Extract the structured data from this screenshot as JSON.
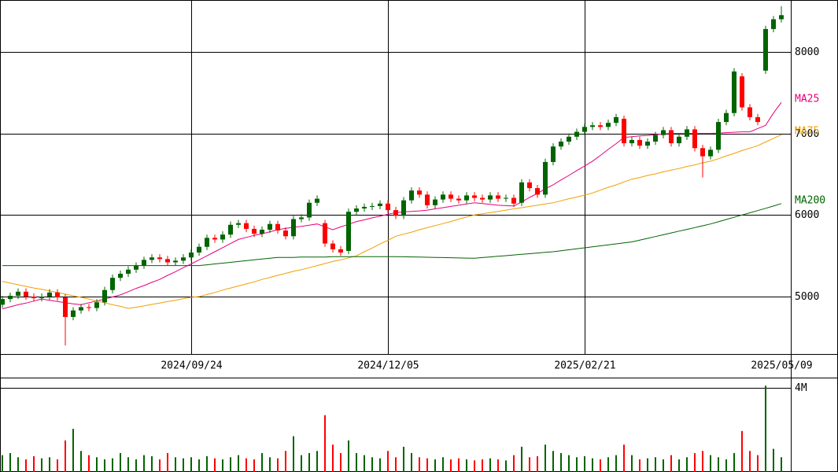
{
  "chart_data": {
    "type": "candlestick",
    "categories": [
      null,
      null,
      null,
      null,
      null,
      null,
      null,
      null,
      null,
      null,
      null,
      null,
      null,
      null,
      null,
      null,
      null,
      null,
      null,
      null,
      null,
      null,
      null,
      null,
      "2024/09/24",
      null,
      null,
      null,
      null,
      null,
      null,
      null,
      null,
      null,
      null,
      null,
      null,
      null,
      null,
      null,
      null,
      null,
      null,
      null,
      null,
      null,
      null,
      null,
      null,
      "2024/12/05",
      null,
      null,
      null,
      null,
      null,
      null,
      null,
      null,
      null,
      null,
      null,
      null,
      null,
      null,
      null,
      null,
      null,
      null,
      null,
      null,
      null,
      null,
      null,
      null,
      "2025/02/21",
      null,
      null,
      null,
      null,
      null,
      null,
      null,
      null,
      null,
      null,
      null,
      null,
      null,
      null,
      null,
      null,
      null,
      null,
      null,
      null,
      null,
      null,
      null,
      null,
      "2025/05/09"
    ],
    "open": [
      4900,
      4970,
      5010,
      5060,
      5000,
      4980,
      5000,
      5050,
      4990,
      4750,
      4830,
      4870,
      4860,
      4930,
      5080,
      5230,
      5280,
      5330,
      5380,
      5450,
      5480,
      5460,
      5420,
      5440,
      5480,
      5540,
      5610,
      5720,
      5700,
      5760,
      5880,
      5900,
      5830,
      5770,
      5820,
      5890,
      5810,
      5740,
      5950,
      5970,
      6150,
      5900,
      5650,
      5580,
      5560,
      6040,
      6080,
      6100,
      6110,
      6140,
      6060,
      5990,
      6180,
      6300,
      6250,
      6120,
      6190,
      6250,
      6200,
      6180,
      6240,
      6210,
      6190,
      6240,
      6200,
      6210,
      6150,
      6400,
      6330,
      6250,
      6650,
      6840,
      6900,
      6960,
      7020,
      7080,
      7100,
      7080,
      7130,
      7180,
      6880,
      6920,
      6850,
      6900,
      6980,
      7040,
      6880,
      6960,
      7050,
      6820,
      6720,
      6800,
      7140,
      7250,
      7700,
      7320,
      7200,
      7770,
      8280,
      8400
    ],
    "high": [
      5010,
      5050,
      5100,
      5100,
      5040,
      5040,
      5090,
      5090,
      5030,
      4870,
      4910,
      4910,
      4970,
      5120,
      5270,
      5320,
      5370,
      5420,
      5490,
      5520,
      5520,
      5500,
      5480,
      5520,
      5580,
      5650,
      5760,
      5760,
      5800,
      5920,
      5940,
      5940,
      5870,
      5860,
      5930,
      5930,
      5850,
      5990,
      6010,
      6190,
      6240,
      5940,
      5690,
      5620,
      6080,
      6120,
      6140,
      6150,
      6180,
      6180,
      6100,
      6220,
      6340,
      6340,
      6290,
      6230,
      6290,
      6290,
      6240,
      6280,
      6280,
      6250,
      6280,
      6280,
      6250,
      6250,
      6440,
      6440,
      6370,
      6690,
      6880,
      6940,
      7000,
      7060,
      7120,
      7140,
      7140,
      7170,
      7240,
      7220,
      6960,
      6960,
      6940,
      7020,
      7080,
      7080,
      7000,
      7090,
      7090,
      6860,
      6840,
      7180,
      7290,
      7800,
      7740,
      7360,
      7240,
      8320,
      8440,
      8560
    ],
    "low": [
      4860,
      4930,
      4970,
      4960,
      4940,
      4940,
      4960,
      4950,
      4400,
      4710,
      4790,
      4820,
      4820,
      4890,
      5040,
      5190,
      5240,
      5290,
      5340,
      5410,
      5420,
      5380,
      5380,
      5400,
      5440,
      5500,
      5570,
      5660,
      5660,
      5720,
      5840,
      5790,
      5730,
      5730,
      5780,
      5770,
      5700,
      5700,
      5910,
      5930,
      6110,
      5610,
      5540,
      5500,
      5520,
      6000,
      6040,
      6060,
      6070,
      6020,
      5950,
      5950,
      6140,
      6210,
      6080,
      6080,
      6150,
      6160,
      6140,
      6140,
      6170,
      6150,
      6150,
      6160,
      6160,
      6100,
      6110,
      6290,
      6210,
      6210,
      6610,
      6800,
      6860,
      6920,
      6980,
      7040,
      7040,
      7040,
      7090,
      6840,
      6840,
      6810,
      6810,
      6860,
      6940,
      6840,
      6840,
      6920,
      6780,
      6460,
      6680,
      6760,
      7100,
      7210,
      7280,
      7160,
      7100,
      7730,
      8240,
      8360
    ],
    "close": [
      4970,
      5010,
      5060,
      5000,
      4980,
      5000,
      5050,
      4990,
      4750,
      4830,
      4870,
      4860,
      4930,
      5080,
      5230,
      5280,
      5330,
      5380,
      5450,
      5480,
      5460,
      5420,
      5440,
      5480,
      5540,
      5610,
      5720,
      5700,
      5760,
      5880,
      5900,
      5830,
      5770,
      5820,
      5890,
      5810,
      5740,
      5950,
      5970,
      6150,
      6200,
      5650,
      5580,
      5540,
      6040,
      6080,
      6100,
      6110,
      6140,
      6060,
      5990,
      6180,
      6300,
      6250,
      6120,
      6190,
      6250,
      6200,
      6180,
      6240,
      6210,
      6190,
      6240,
      6200,
      6210,
      6140,
      6400,
      6330,
      6250,
      6650,
      6840,
      6900,
      6960,
      7020,
      7080,
      7100,
      7080,
      7130,
      7200,
      6880,
      6920,
      6850,
      6900,
      6980,
      7040,
      6880,
      6960,
      7050,
      6820,
      6720,
      6800,
      7140,
      7250,
      7760,
      7320,
      7200,
      7140,
      8280,
      8400,
      8450
    ],
    "volume": [
      800000,
      900000,
      700000,
      600000,
      750000,
      650000,
      700000,
      600000,
      1500000,
      2050000,
      1000000,
      800000,
      700000,
      600000,
      650000,
      900000,
      700000,
      600000,
      800000,
      750000,
      600000,
      900000,
      700000,
      650000,
      700000,
      600000,
      750000,
      650000,
      600000,
      700000,
      800000,
      650000,
      600000,
      900000,
      700000,
      650000,
      1000000,
      1700000,
      800000,
      900000,
      1000000,
      2700000,
      1300000,
      900000,
      1500000,
      900000,
      800000,
      700000,
      650000,
      1000000,
      700000,
      1200000,
      900000,
      700000,
      650000,
      600000,
      700000,
      600000,
      650000,
      600000,
      550000,
      600000,
      650000,
      600000,
      550000,
      800000,
      1200000,
      700000,
      750000,
      1300000,
      1000000,
      900000,
      800000,
      700000,
      750000,
      650000,
      600000,
      700000,
      800000,
      1300000,
      800000,
      600000,
      650000,
      700000,
      600000,
      800000,
      600000,
      700000,
      900000,
      1000000,
      800000,
      700000,
      600000,
      900000,
      1950000,
      1000000,
      800000,
      4100000,
      1100000,
      700000
    ],
    "up_color": "#006400",
    "down_color": "#ff0000",
    "series": [
      {
        "name": "MA25",
        "color": "#e6007e",
        "values": [
          4850,
          4875,
          4900,
          4920,
          4945,
          4970,
          4955,
          4940,
          4925,
          4910,
          4900,
          4925,
          4945,
          4970,
          4995,
          5020,
          5060,
          5100,
          5135,
          5175,
          5210,
          5260,
          5305,
          5355,
          5400,
          5450,
          5500,
          5550,
          5600,
          5650,
          5700,
          5725,
          5750,
          5770,
          5795,
          5820,
          5835,
          5850,
          5860,
          5875,
          5890,
          5855,
          5820,
          5855,
          5885,
          5920,
          5940,
          5965,
          5985,
          6010,
          6030,
          6040,
          6045,
          6050,
          6060,
          6075,
          6090,
          6105,
          6120,
          6135,
          6150,
          6140,
          6130,
          6120,
          6115,
          6110,
          6160,
          6215,
          6265,
          6320,
          6370,
          6430,
          6485,
          6545,
          6600,
          6660,
          6730,
          6805,
          6875,
          6950,
          6960,
          6970,
          6975,
          6985,
          6995,
          7000,
          7000,
          7000,
          7000,
          7000,
          7000,
          7005,
          7010,
          7015,
          7020,
          7020,
          7060,
          7100,
          7250,
          7380
        ]
      },
      {
        "name": "MA75",
        "color": "#f0a000",
        "values": [
          5185,
          5165,
          5145,
          5125,
          5105,
          5090,
          5070,
          5050,
          5030,
          5010,
          4990,
          4970,
          4945,
          4925,
          4900,
          4880,
          4855,
          4870,
          4885,
          4905,
          4920,
          4940,
          4955,
          4975,
          4990,
          5000,
          5025,
          5050,
          5080,
          5105,
          5130,
          5155,
          5180,
          5210,
          5235,
          5260,
          5285,
          5310,
          5330,
          5355,
          5380,
          5405,
          5430,
          5450,
          5475,
          5500,
          5550,
          5595,
          5645,
          5690,
          5740,
          5765,
          5790,
          5820,
          5845,
          5870,
          5895,
          5920,
          5950,
          5975,
          6000,
          6015,
          6030,
          6045,
          6060,
          6075,
          6090,
          6105,
          6120,
          6135,
          6150,
          6175,
          6200,
          6220,
          6245,
          6270,
          6305,
          6340,
          6370,
          6405,
          6440,
          6460,
          6485,
          6505,
          6530,
          6550,
          6570,
          6595,
          6615,
          6640,
          6660,
          6690,
          6725,
          6755,
          6790,
          6820,
          6850,
          6895,
          6940,
          6985
        ]
      },
      {
        "name": "MA200",
        "color": "#006400",
        "values": [
          5380,
          5380,
          5380,
          5380,
          5380,
          5380,
          5380,
          5380,
          5380,
          5380,
          5380,
          5380,
          5380,
          5380,
          5380,
          5380,
          5380,
          5380,
          5380,
          5380,
          5380,
          5380,
          5380,
          5380,
          5380,
          5380,
          5390,
          5400,
          5410,
          5420,
          5430,
          5440,
          5450,
          5460,
          5470,
          5480,
          5480,
          5480,
          5485,
          5485,
          5485,
          5485,
          5490,
          5490,
          5490,
          5490,
          5490,
          5490,
          5490,
          5490,
          5490,
          5488,
          5486,
          5484,
          5482,
          5480,
          5478,
          5476,
          5474,
          5472,
          5470,
          5478,
          5486,
          5494,
          5502,
          5510,
          5518,
          5526,
          5534,
          5542,
          5550,
          5562,
          5574,
          5586,
          5598,
          5610,
          5622,
          5634,
          5646,
          5658,
          5670,
          5692,
          5714,
          5736,
          5758,
          5780,
          5802,
          5824,
          5846,
          5868,
          5890,
          5917,
          5945,
          5972,
          6000,
          6027,
          6054,
          6082,
          6110,
          6140
        ]
      }
    ],
    "ylim": [
      4296,
      8636
    ],
    "yticks": [
      5000,
      6000,
      7000,
      8000
    ],
    "volume_ylim": [
      0,
      4486000
    ],
    "volume_yticks": [
      {
        "value": 4000000,
        "label": "4M"
      }
    ],
    "grid": true
  }
}
